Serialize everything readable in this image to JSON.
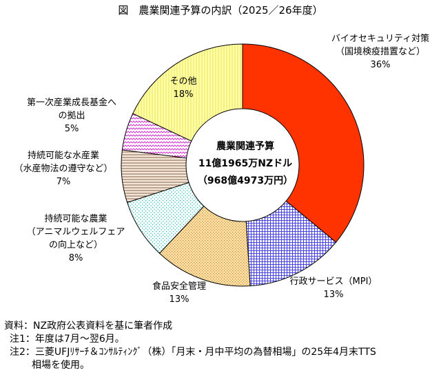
{
  "chart_data": {
    "type": "pie",
    "title": "図　農業関連予算の内訳（2025／26年度）",
    "center_label": [
      "農業関連予算",
      "11億1965万NZドル",
      "（968億4973万円）"
    ],
    "slices": [
      {
        "label_lines": [
          "バイオセキュリティ対策",
          "（国境検疫措置など）"
        ],
        "percent_label": "36%",
        "value": 36,
        "color": "#ff3300",
        "pattern": "solid"
      },
      {
        "label_lines": [
          "行政サービス（MPI）"
        ],
        "percent_label": "13%",
        "value": 13,
        "color": "#5555ee",
        "pattern": "grid"
      },
      {
        "label_lines": [
          "食品安全管理"
        ],
        "percent_label": "13%",
        "value": 13,
        "color": "#ffd080",
        "pattern": "dots"
      },
      {
        "label_lines": [
          "持続可能な農業",
          "（アニマルウェルフェア",
          "の向上など）"
        ],
        "percent_label": "8%",
        "value": 8,
        "color": "#33cccc",
        "pattern": "dots-light"
      },
      {
        "label_lines": [
          "持続可能な水産業",
          "（水産物法の遵守など）"
        ],
        "percent_label": "7%",
        "value": 7,
        "color": "#a07850",
        "pattern": "hstripe"
      },
      {
        "label_lines": [
          "第一次産業成長基金へ",
          "の拠出"
        ],
        "percent_label": "5%",
        "value": 5,
        "color": "#cc33cc",
        "pattern": "zigzag"
      },
      {
        "label_lines": [
          "その他"
        ],
        "percent_label": "18%",
        "value": 18,
        "color": "#ffff99",
        "pattern": "vstripe"
      }
    ]
  },
  "notes": {
    "source": "資料：NZ政府公表資料を基に筆者作成",
    "note1": "注1：年度は7月～翌6月。",
    "note2": "注2：三菱UFJﾘｻｰﾁ＆ｺﾝｻﾙﾃｨﾝｸﾞ（株）「月末・月中平均の為替相場」の25年4月末TTS",
    "note2_cont": "相場を使用。"
  }
}
